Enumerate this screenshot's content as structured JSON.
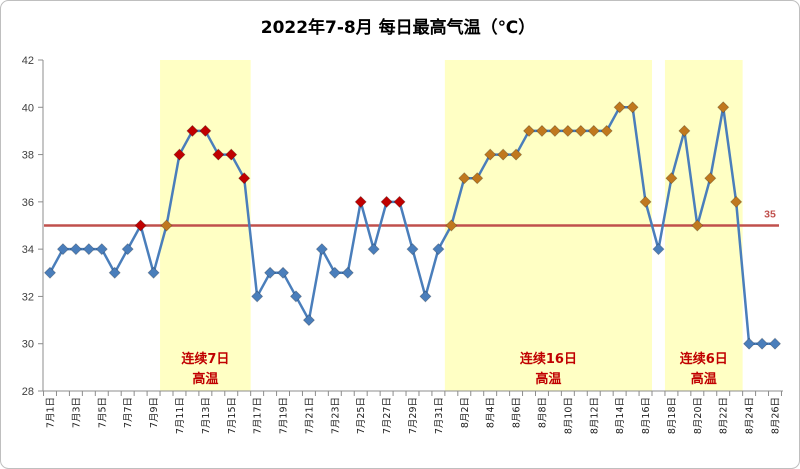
{
  "chart_data": {
    "type": "line",
    "title": "2022年7-8月 每日最高气温（℃）",
    "ylim": [
      28,
      42
    ],
    "yticks": [
      28,
      30,
      32,
      34,
      36,
      38,
      40,
      42
    ],
    "grid": false,
    "colors": {
      "line": "#4A7EBB",
      "threshold": "#C0504D",
      "highlight_fill": "#FFFFC4",
      "highlight_text": "#C00000",
      "axis": "#8C8C8C"
    },
    "series": [
      {
        "points": [
          {
            "m": 7,
            "d": 1,
            "y": 33,
            "c": "#4A7EBB"
          },
          {
            "m": 7,
            "d": 2,
            "y": 34,
            "c": "#4A7EBB"
          },
          {
            "m": 7,
            "d": 3,
            "y": 34,
            "c": "#4A7EBB"
          },
          {
            "m": 7,
            "d": 4,
            "y": 34,
            "c": "#4A7EBB"
          },
          {
            "m": 7,
            "d": 5,
            "y": 34,
            "c": "#4A7EBB"
          },
          {
            "m": 7,
            "d": 6,
            "y": 33,
            "c": "#4A7EBB"
          },
          {
            "m": 7,
            "d": 7,
            "y": 34,
            "c": "#4A7EBB"
          },
          {
            "m": 7,
            "d": 8,
            "y": 35,
            "c": "#C00000"
          },
          {
            "m": 7,
            "d": 9,
            "y": 33,
            "c": "#4A7EBB"
          },
          {
            "m": 7,
            "d": 10,
            "y": 35,
            "c": "#C0781E"
          },
          {
            "m": 7,
            "d": 11,
            "y": 38,
            "c": "#C00000"
          },
          {
            "m": 7,
            "d": 12,
            "y": 39,
            "c": "#C00000"
          },
          {
            "m": 7,
            "d": 13,
            "y": 39,
            "c": "#C00000"
          },
          {
            "m": 7,
            "d": 14,
            "y": 38,
            "c": "#C00000"
          },
          {
            "m": 7,
            "d": 15,
            "y": 38,
            "c": "#C00000"
          },
          {
            "m": 7,
            "d": 16,
            "y": 37,
            "c": "#C00000"
          },
          {
            "m": 7,
            "d": 17,
            "y": 32,
            "c": "#4A7EBB"
          },
          {
            "m": 7,
            "d": 18,
            "y": 33,
            "c": "#4A7EBB"
          },
          {
            "m": 7,
            "d": 19,
            "y": 33,
            "c": "#4A7EBB"
          },
          {
            "m": 7,
            "d": 20,
            "y": 32,
            "c": "#4A7EBB"
          },
          {
            "m": 7,
            "d": 21,
            "y": 31,
            "c": "#4A7EBB"
          },
          {
            "m": 7,
            "d": 22,
            "y": 34,
            "c": "#4A7EBB"
          },
          {
            "m": 7,
            "d": 23,
            "y": 33,
            "c": "#4A7EBB"
          },
          {
            "m": 7,
            "d": 24,
            "y": 33,
            "c": "#4A7EBB"
          },
          {
            "m": 7,
            "d": 25,
            "y": 36,
            "c": "#C00000"
          },
          {
            "m": 7,
            "d": 26,
            "y": 34,
            "c": "#4A7EBB"
          },
          {
            "m": 7,
            "d": 27,
            "y": 36,
            "c": "#C00000"
          },
          {
            "m": 7,
            "d": 28,
            "y": 36,
            "c": "#C00000"
          },
          {
            "m": 7,
            "d": 29,
            "y": 34,
            "c": "#4A7EBB"
          },
          {
            "m": 7,
            "d": 30,
            "y": 32,
            "c": "#4A7EBB"
          },
          {
            "m": 7,
            "d": 31,
            "y": 34,
            "c": "#4A7EBB"
          },
          {
            "m": 8,
            "d": 1,
            "y": 35,
            "c": "#C0781E"
          },
          {
            "m": 8,
            "d": 2,
            "y": 37,
            "c": "#C0781E"
          },
          {
            "m": 8,
            "d": 3,
            "y": 37,
            "c": "#C0781E"
          },
          {
            "m": 8,
            "d": 4,
            "y": 38,
            "c": "#C0781E"
          },
          {
            "m": 8,
            "d": 5,
            "y": 38,
            "c": "#C0781E"
          },
          {
            "m": 8,
            "d": 6,
            "y": 38,
            "c": "#C0781E"
          },
          {
            "m": 8,
            "d": 7,
            "y": 39,
            "c": "#C0781E"
          },
          {
            "m": 8,
            "d": 8,
            "y": 39,
            "c": "#C0781E"
          },
          {
            "m": 8,
            "d": 9,
            "y": 39,
            "c": "#C0781E"
          },
          {
            "m": 8,
            "d": 10,
            "y": 39,
            "c": "#C0781E"
          },
          {
            "m": 8,
            "d": 11,
            "y": 39,
            "c": "#C0781E"
          },
          {
            "m": 8,
            "d": 12,
            "y": 39,
            "c": "#C0781E"
          },
          {
            "m": 8,
            "d": 13,
            "y": 39,
            "c": "#C0781E"
          },
          {
            "m": 8,
            "d": 14,
            "y": 40,
            "c": "#C0781E"
          },
          {
            "m": 8,
            "d": 15,
            "y": 40,
            "c": "#C0781E"
          },
          {
            "m": 8,
            "d": 16,
            "y": 36,
            "c": "#C0781E"
          },
          {
            "m": 8,
            "d": 17,
            "y": 34,
            "c": "#4A7EBB"
          },
          {
            "m": 8,
            "d": 18,
            "y": 37,
            "c": "#C0781E"
          },
          {
            "m": 8,
            "d": 19,
            "y": 39,
            "c": "#C0781E"
          },
          {
            "m": 8,
            "d": 20,
            "y": 35,
            "c": "#C0781E"
          },
          {
            "m": 8,
            "d": 21,
            "y": 37,
            "c": "#C0781E"
          },
          {
            "m": 8,
            "d": 22,
            "y": 40,
            "c": "#C0781E"
          },
          {
            "m": 8,
            "d": 23,
            "y": 36,
            "c": "#C0781E"
          },
          {
            "m": 8,
            "d": 24,
            "y": 30,
            "c": "#4A7EBB"
          },
          {
            "m": 8,
            "d": 25,
            "y": 30,
            "c": "#4A7EBB"
          },
          {
            "m": 8,
            "d": 26,
            "y": 30,
            "c": "#4A7EBB"
          }
        ]
      }
    ],
    "x_ticks": [
      {
        "m": 7,
        "d": 1,
        "label": "7月1日"
      },
      {
        "m": 7,
        "d": 3,
        "label": "7月3日"
      },
      {
        "m": 7,
        "d": 5,
        "label": "7月5日"
      },
      {
        "m": 7,
        "d": 7,
        "label": "7月7日"
      },
      {
        "m": 7,
        "d": 9,
        "label": "7月9日"
      },
      {
        "m": 7,
        "d": 11,
        "label": "7月11日"
      },
      {
        "m": 7,
        "d": 13,
        "label": "7月13日"
      },
      {
        "m": 7,
        "d": 15,
        "label": "7月15日"
      },
      {
        "m": 7,
        "d": 17,
        "label": "7月17日"
      },
      {
        "m": 7,
        "d": 19,
        "label": "7月19日"
      },
      {
        "m": 7,
        "d": 21,
        "label": "7月21日"
      },
      {
        "m": 7,
        "d": 23,
        "label": "7月23日"
      },
      {
        "m": 7,
        "d": 25,
        "label": "7月25日"
      },
      {
        "m": 7,
        "d": 27,
        "label": "7月27日"
      },
      {
        "m": 7,
        "d": 29,
        "label": "7月29日"
      },
      {
        "m": 7,
        "d": 31,
        "label": "7月31日"
      },
      {
        "m": 8,
        "d": 2,
        "label": "8月2日"
      },
      {
        "m": 8,
        "d": 4,
        "label": "8月4日"
      },
      {
        "m": 8,
        "d": 6,
        "label": "8月6日"
      },
      {
        "m": 8,
        "d": 8,
        "label": "8月8日"
      },
      {
        "m": 8,
        "d": 10,
        "label": "8月10日"
      },
      {
        "m": 8,
        "d": 12,
        "label": "8月12日"
      },
      {
        "m": 8,
        "d": 14,
        "label": "8月14日"
      },
      {
        "m": 8,
        "d": 16,
        "label": "8月16日"
      },
      {
        "m": 8,
        "d": 18,
        "label": "8月18日"
      },
      {
        "m": 8,
        "d": 20,
        "label": "8月20日"
      },
      {
        "m": 8,
        "d": 22,
        "label": "8月22日"
      },
      {
        "m": 8,
        "d": 24,
        "label": "8月24日"
      },
      {
        "m": 8,
        "d": 26,
        "label": "8月26日"
      }
    ],
    "threshold": {
      "value": 35,
      "label": "35"
    },
    "highlights": [
      {
        "from": {
          "m": 7,
          "d": 10
        },
        "to": {
          "m": 7,
          "d": 16
        },
        "label": [
          "连续7日",
          "高温"
        ]
      },
      {
        "from": {
          "m": 8,
          "d": 1
        },
        "to": {
          "m": 8,
          "d": 16
        },
        "label": [
          "连续16日",
          "高温"
        ]
      },
      {
        "from": {
          "m": 8,
          "d": 18
        },
        "to": {
          "m": 8,
          "d": 23
        },
        "label": [
          "连续6日",
          "高温"
        ]
      }
    ]
  }
}
